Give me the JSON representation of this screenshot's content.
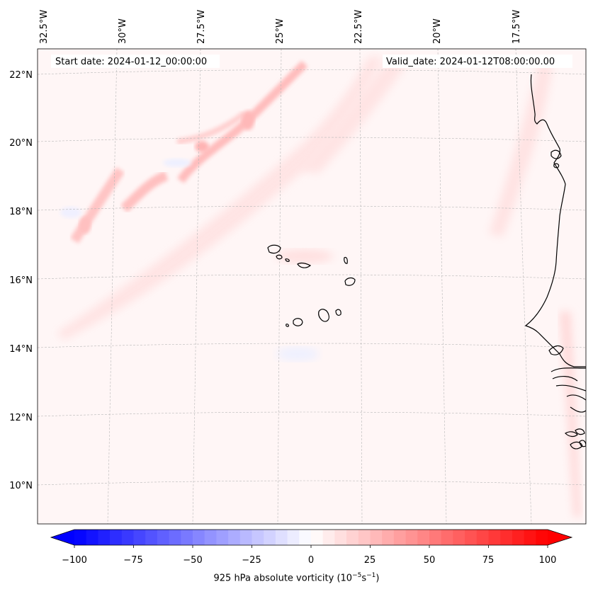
{
  "header": {
    "start_date": "Start date: 2024-01-12_00:00:00",
    "valid_date": "Valid_date: 2024-01-12T08:00:00.00"
  },
  "map": {
    "lon_labels": [
      "32.5°W",
      "30°W",
      "27.5°W",
      "25°W",
      "22.5°W",
      "20°W",
      "17.5°W"
    ],
    "lat_labels": [
      "22°N",
      "20°N",
      "18°N",
      "16°N",
      "14°N",
      "12°N",
      "10°N"
    ],
    "grid": true
  },
  "colorbar": {
    "ticks": [
      "−100",
      "−75",
      "−50",
      "−25",
      "0",
      "25",
      "50",
      "75",
      "100"
    ],
    "range": [
      -100,
      100
    ],
    "n_levels": 40,
    "colors": {
      "min": "#0000ff",
      "mid": "#ffffff",
      "max": "#ff0000"
    },
    "label_main": "925 hPa absolute vorticity (10",
    "label_exp1": "−5",
    "label_mid": "s",
    "label_exp2": "−1",
    "label_end": ")"
  }
}
